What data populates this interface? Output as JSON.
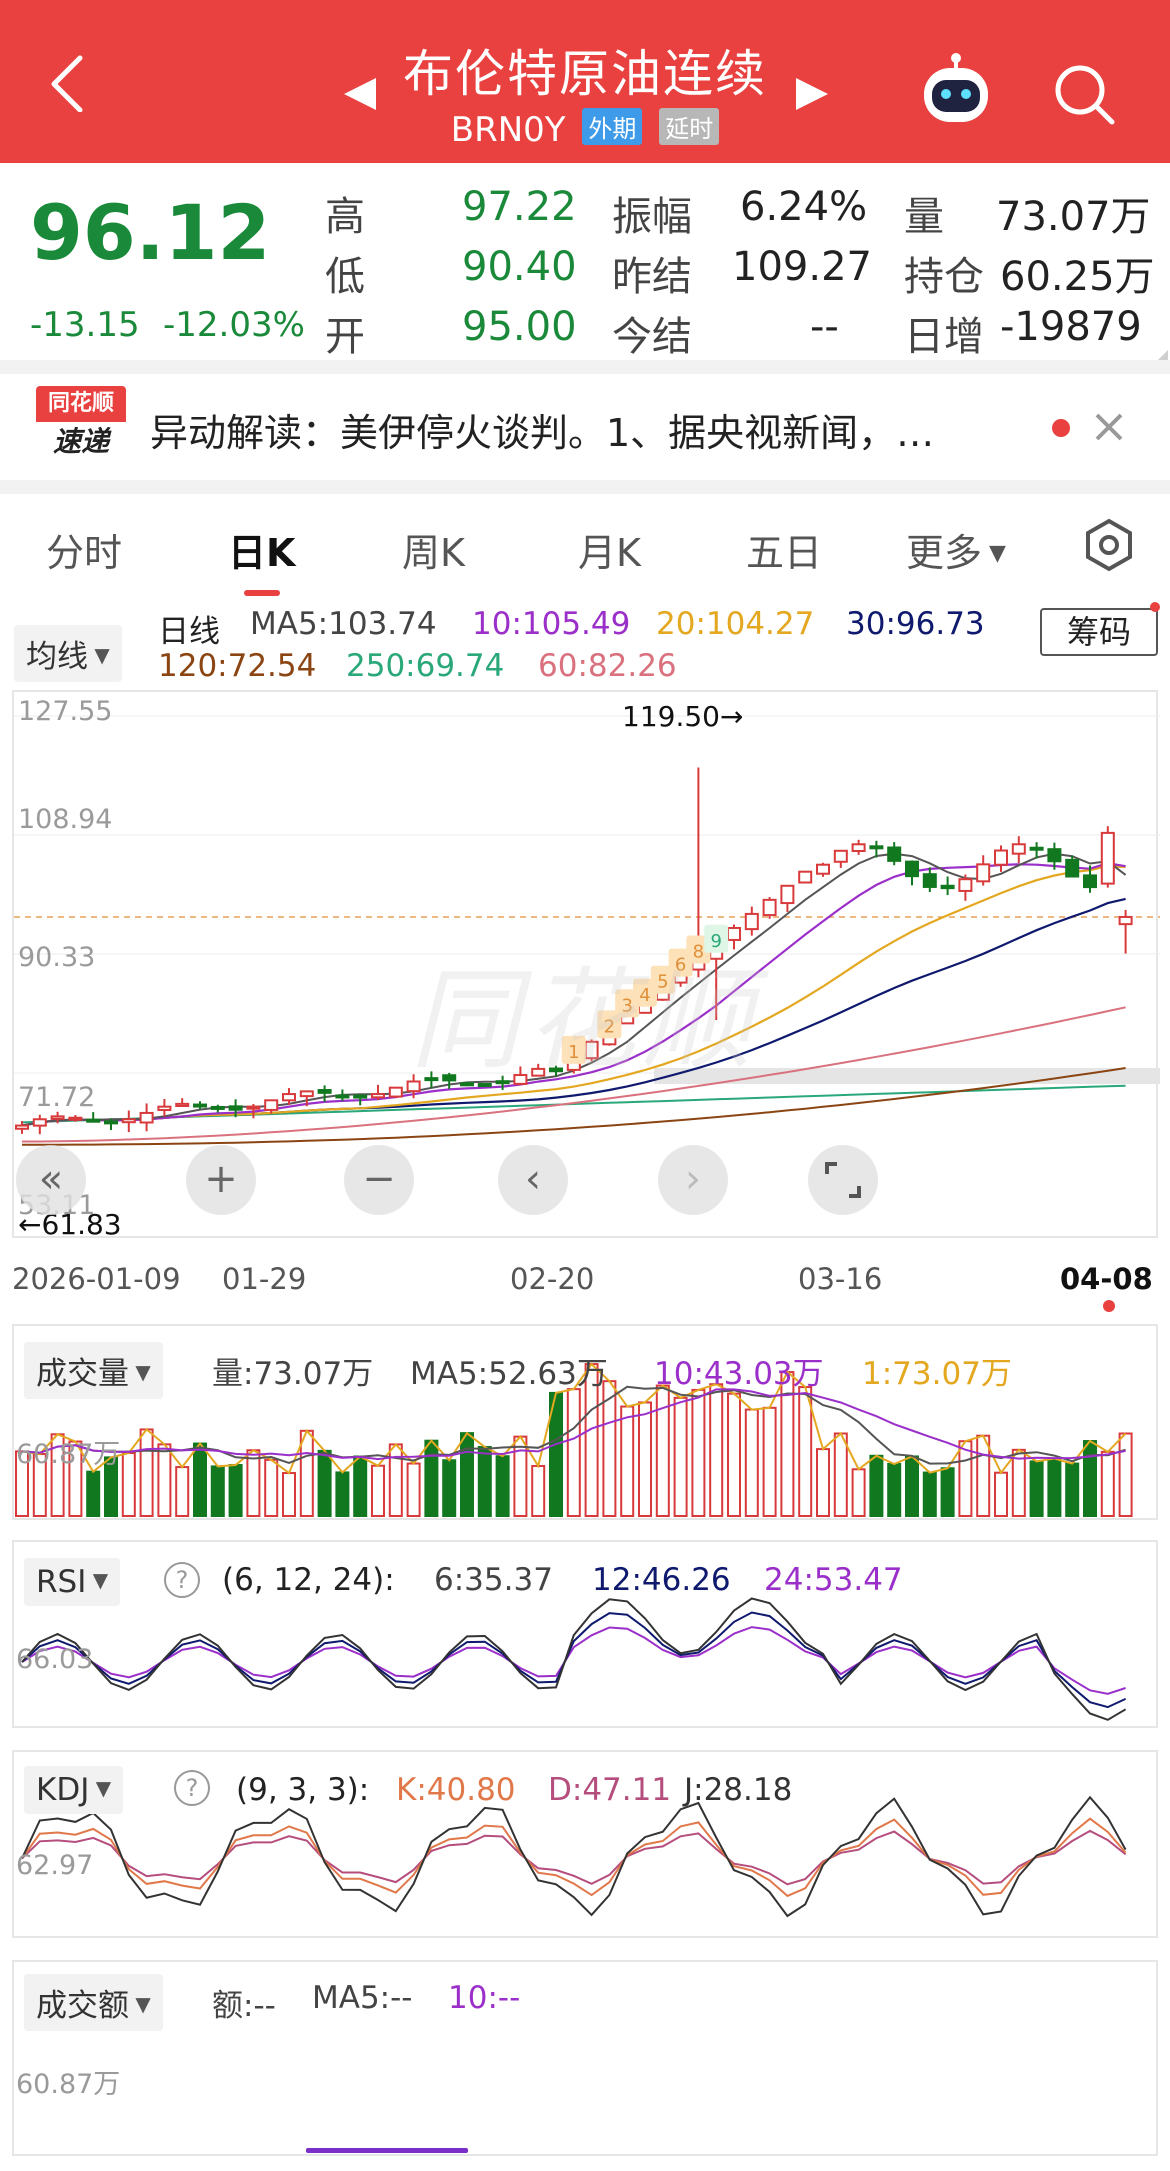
{
  "header": {
    "title": "布伦特原油连续",
    "code": "BRN0Y",
    "tag_foreign": "外期",
    "tag_delay": "延时"
  },
  "quote": {
    "price": "96.12",
    "change": "-13.15",
    "change_pct": "-12.03%",
    "high_label": "高",
    "high": "97.22",
    "low_label": "低",
    "low": "90.40",
    "open_label": "开",
    "open": "95.00",
    "amp_label": "振幅",
    "amp": "6.24%",
    "prev_label": "昨结",
    "prev": "109.27",
    "settle_label": "今结",
    "settle": "--",
    "vol_label": "量",
    "vol": "73.07万",
    "oi_label": "持仓",
    "oi": "60.25万",
    "daily_label": "日增",
    "daily": "-19879"
  },
  "news": {
    "logo_top": "同花顺",
    "logo_bottom": "速递",
    "text": "异动解读：美伊停火谈判。1、据央视新闻，…"
  },
  "tabs": [
    "分时",
    "日K",
    "周K",
    "月K",
    "五日",
    "更多"
  ],
  "kline": {
    "ma_selector": "均线",
    "period": "日线",
    "ma5": "MA5:103.74",
    "ma10": "10:105.49",
    "ma20": "20:104.27",
    "ma30": "30:96.73",
    "ma120": "120:72.54",
    "ma250": "250:69.74",
    "ma60": "60:82.26",
    "chip_button": "筹码",
    "y_labels": [
      "127.55",
      "108.94",
      "90.33",
      "71.72",
      "53.11"
    ],
    "high_mark": "119.50→",
    "low_mark": "←61.83",
    "x_labels": [
      "2026-01-09",
      "01-29",
      "02-20",
      "03-16",
      "04-08"
    ],
    "seq_marks": [
      "1",
      "2",
      "3",
      "4",
      "5",
      "6",
      "8",
      "9"
    ],
    "colors": {
      "up": "#d8393a",
      "down": "#11781f",
      "ma5": "#555555",
      "ma10": "#9b2fc9",
      "ma20": "#e3a720",
      "ma30": "#0f1a6e"
    }
  },
  "volume": {
    "selector": "成交量",
    "vol": "量:73.07万",
    "ma5": "MA5:52.63万",
    "ma10": "10:43.03万",
    "ma1": "1:73.07万",
    "y_label": "60.87万"
  },
  "rsi": {
    "selector": "RSI",
    "params": "(6, 12, 24):",
    "r6": "6:35.37",
    "r12": "12:46.26",
    "r24": "24:53.47",
    "y_label": "66.03"
  },
  "kdj": {
    "selector": "KDJ",
    "params": "(9, 3, 3):",
    "k": "K:40.80",
    "d": "D:47.11",
    "j": "J:28.18",
    "y_label": "62.97"
  },
  "turnover": {
    "selector": "成交额",
    "amount": "额:--",
    "ma5": "MA5:--",
    "ma10": "10:--",
    "y_label": "60.87万"
  }
}
